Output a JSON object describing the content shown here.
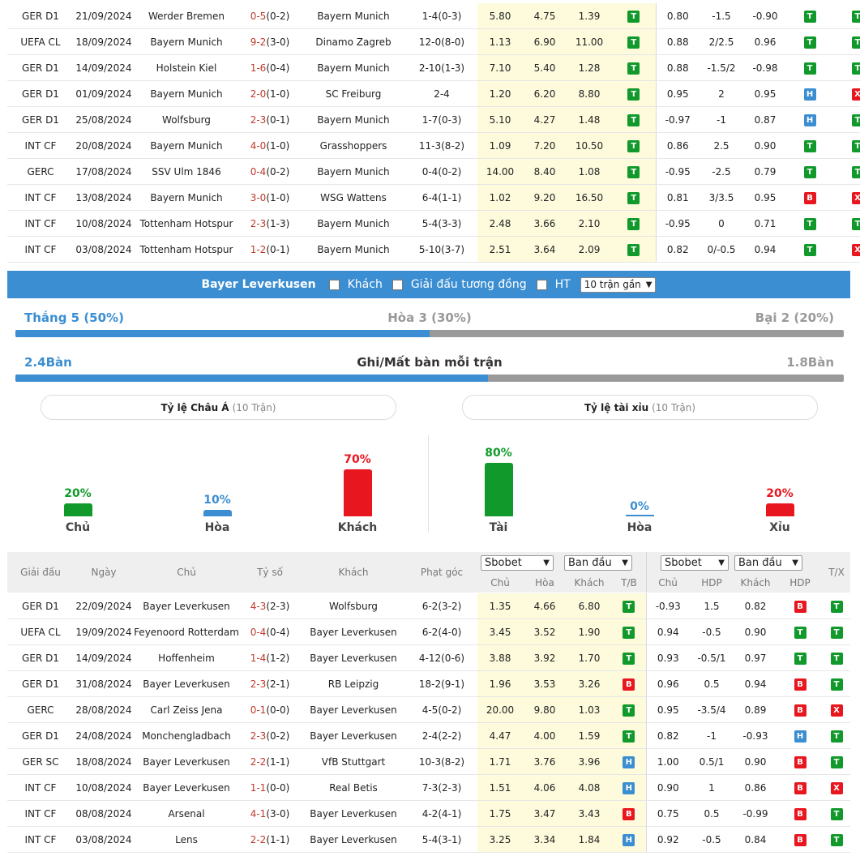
{
  "top_matches": [
    {
      "league": "GER D1",
      "date": "21/09/2024",
      "home": "Werder Bremen",
      "home_hl": false,
      "score": "0-5",
      "ht": "(0-2)",
      "away": "Bayern Munich",
      "away_hl": true,
      "corner": "1-4(0-3)",
      "o1": "5.80",
      "o2": "4.75",
      "o3": "1.39",
      "r1": "T",
      "h1": "0.80",
      "hdp": "-1.5",
      "h2": "-0.90",
      "r2": "T",
      "r3": "T"
    },
    {
      "league": "UEFA CL",
      "date": "18/09/2024",
      "home": "Bayern Munich",
      "home_hl": true,
      "score": "9-2",
      "ht": "(3-0)",
      "away": "Dinamo Zagreb",
      "away_hl": false,
      "corner": "12-0(8-0)",
      "o1": "1.13",
      "o2": "6.90",
      "o3": "11.00",
      "r1": "T",
      "h1": "0.88",
      "hdp": "2/2.5",
      "h2": "0.96",
      "r2": "T",
      "r3": "T"
    },
    {
      "league": "GER D1",
      "date": "14/09/2024",
      "home": "Holstein Kiel",
      "home_hl": false,
      "score": "1-6",
      "ht": "(0-4)",
      "away": "Bayern Munich",
      "away_hl": true,
      "corner": "2-10(1-3)",
      "o1": "7.10",
      "o2": "5.40",
      "o3": "1.28",
      "r1": "T",
      "h1": "0.88",
      "hdp": "-1.5/2",
      "h2": "-0.98",
      "r2": "T",
      "r3": "T"
    },
    {
      "league": "GER D1",
      "date": "01/09/2024",
      "home": "Bayern Munich",
      "home_hl": true,
      "score": "2-0",
      "ht": "(1-0)",
      "away": "SC Freiburg",
      "away_hl": false,
      "corner": "2-4",
      "o1": "1.20",
      "o2": "6.20",
      "o3": "8.80",
      "r1": "T",
      "h1": "0.95",
      "hdp": "2",
      "h2": "0.95",
      "r2": "H",
      "r3": "X"
    },
    {
      "league": "GER D1",
      "date": "25/08/2024",
      "home": "Wolfsburg",
      "home_hl": false,
      "score": "2-3",
      "ht": "(0-1)",
      "away": "Bayern Munich",
      "away_hl": true,
      "corner": "1-7(0-3)",
      "o1": "5.10",
      "o2": "4.27",
      "o3": "1.48",
      "r1": "T",
      "h1": "-0.97",
      "hdp": "-1",
      "h2": "0.87",
      "r2": "H",
      "r3": "T"
    },
    {
      "league": "INT CF",
      "date": "20/08/2024",
      "home": "Bayern Munich",
      "home_hl": true,
      "score": "4-0",
      "ht": "(1-0)",
      "away": "Grasshoppers",
      "away_hl": false,
      "corner": "11-3(8-2)",
      "o1": "1.09",
      "o2": "7.20",
      "o3": "10.50",
      "r1": "T",
      "h1": "0.86",
      "hdp": "2.5",
      "h2": "0.90",
      "r2": "T",
      "r3": "T"
    },
    {
      "league": "GERC",
      "date": "17/08/2024",
      "home": "SSV Ulm 1846",
      "home_hl": false,
      "score": "0-4",
      "ht": "(0-2)",
      "away": "Bayern Munich",
      "away_hl": true,
      "corner": "0-4(0-2)",
      "o1": "14.00",
      "o2": "8.40",
      "o3": "1.08",
      "r1": "T",
      "h1": "-0.95",
      "hdp": "-2.5",
      "h2": "0.79",
      "r2": "T",
      "r3": "T"
    },
    {
      "league": "INT CF",
      "date": "13/08/2024",
      "home": "Bayern Munich",
      "home_hl": true,
      "score": "3-0",
      "ht": "(1-0)",
      "away": "WSG Wattens",
      "away_hl": false,
      "corner": "6-4(1-1)",
      "o1": "1.02",
      "o2": "9.20",
      "o3": "16.50",
      "r1": "T",
      "h1": "0.81",
      "hdp": "3/3.5",
      "h2": "0.95",
      "r2": "B",
      "r3": "X"
    },
    {
      "league": "INT CF",
      "date": "10/08/2024",
      "home": "Tottenham Hotspur",
      "home_hl": false,
      "score": "2-3",
      "ht": "(1-3)",
      "away": "Bayern Munich",
      "away_hl": true,
      "corner": "5-4(3-3)",
      "o1": "2.48",
      "o2": "3.66",
      "o3": "2.10",
      "r1": "T",
      "h1": "-0.95",
      "hdp": "0",
      "h2": "0.71",
      "r2": "T",
      "r3": "T"
    },
    {
      "league": "INT CF",
      "date": "03/08/2024",
      "home": "Tottenham Hotspur",
      "home_hl": false,
      "score": "1-2",
      "ht": "(0-1)",
      "away": "Bayern Munich",
      "away_hl": true,
      "corner": "5-10(3-7)",
      "o1": "2.51",
      "o2": "3.64",
      "o3": "2.09",
      "r1": "T",
      "h1": "0.82",
      "hdp": "0/-0.5",
      "h2": "0.94",
      "r2": "T",
      "r3": "X"
    }
  ],
  "filter_bar": {
    "team": "Bayer Leverkusen",
    "opt_away": "Khách",
    "opt_same_league": "Giải đấu tương đồng",
    "opt_ht": "HT",
    "range_value": "10 trận gần"
  },
  "summary": {
    "win_label": "Thắng 5 (50%)",
    "draw_label": "Hòa 3 (30%)",
    "loss_label": "Bại 2 (20%)",
    "win_frac": 0.5,
    "gf_label": "2.4Bàn",
    "goals_title": "Ghi/Mất bàn mỗi trận",
    "ga_label": "1.8Bàn",
    "gf_frac": 0.57
  },
  "odds_panels": {
    "asian_title": "Tỷ lệ Châu Á",
    "asian_count": "(10 Trận)",
    "ou_title": "Tỷ lệ tài xỉu",
    "ou_count": "(10 Trận)"
  },
  "chart_data": [
    {
      "type": "bar",
      "title": "Tỷ lệ Châu Á (10 Trận)",
      "categories": [
        "Chủ",
        "Hòa",
        "Khách"
      ],
      "values": [
        20,
        10,
        70
      ],
      "value_labels": [
        "20%",
        "10%",
        "70%"
      ],
      "colors": [
        "#119a2b",
        "#3b8ed1",
        "#e8161e"
      ],
      "ylim": [
        0,
        100
      ]
    },
    {
      "type": "bar",
      "title": "Tỷ lệ tài xỉu (10 Trận)",
      "categories": [
        "Tài",
        "Hòa",
        "Xỉu"
      ],
      "values": [
        80,
        0,
        20
      ],
      "value_labels": [
        "80%",
        "0%",
        "20%"
      ],
      "colors": [
        "#119a2b",
        "#3b8ed1",
        "#e8161e"
      ],
      "ylim": [
        0,
        100
      ]
    }
  ],
  "bottom_header": {
    "league": "Giải đấu",
    "date": "Ngày",
    "home": "Chủ",
    "score": "Tỷ số",
    "away": "Khách",
    "corner": "Phạt góc",
    "book1": "Sbobet",
    "type1": "Ban đầu",
    "book2": "Sbobet",
    "type2": "Ban đầu",
    "c_home": "Chủ",
    "c_draw": "Hòa",
    "c_away": "Khách",
    "c_tb": "T/B",
    "c_home2": "Chủ",
    "c_hdp": "HDP",
    "c_away2": "Khách",
    "c_hdp2": "HDP",
    "tx": "T/X"
  },
  "bottom_matches": [
    {
      "league": "GER D1",
      "date": "22/09/2024",
      "home": "Bayer Leverkusen",
      "home_hl": true,
      "score": "4-3",
      "ht": "(2-3)",
      "away": "Wolfsburg",
      "away_hl": false,
      "corner": "6-2(3-2)",
      "o1": "1.35",
      "o2": "4.66",
      "o3": "6.80",
      "r1": "T",
      "h1": "-0.93",
      "hdp": "1.5",
      "h2": "0.82",
      "r2": "B",
      "r3": "T"
    },
    {
      "league": "UEFA CL",
      "date": "19/09/2024",
      "home": "Feyenoord Rotterdam",
      "home_hl": false,
      "score": "0-4",
      "ht": "(0-4)",
      "away": "Bayer Leverkusen",
      "away_hl": true,
      "corner": "6-2(4-0)",
      "o1": "3.45",
      "o2": "3.52",
      "o3": "1.90",
      "r1": "T",
      "h1": "0.94",
      "hdp": "-0.5",
      "h2": "0.90",
      "r2": "T",
      "r3": "T"
    },
    {
      "league": "GER D1",
      "date": "14/09/2024",
      "home": "Hoffenheim",
      "home_hl": false,
      "score": "1-4",
      "ht": "(1-2)",
      "away": "Bayer Leverkusen",
      "away_hl": true,
      "corner": "4-12(0-6)",
      "o1": "3.88",
      "o2": "3.92",
      "o3": "1.70",
      "r1": "T",
      "h1": "0.93",
      "hdp": "-0.5/1",
      "h2": "0.97",
      "r2": "T",
      "r3": "T"
    },
    {
      "league": "GER D1",
      "date": "31/08/2024",
      "home": "Bayer Leverkusen",
      "home_hl": true,
      "score": "2-3",
      "ht": "(2-1)",
      "away": "RB Leipzig",
      "away_hl": false,
      "corner": "18-2(9-1)",
      "o1": "1.96",
      "o2": "3.53",
      "o3": "3.26",
      "r1": "B",
      "h1": "0.96",
      "hdp": "0.5",
      "h2": "0.94",
      "r2": "B",
      "r3": "T"
    },
    {
      "league": "GERC",
      "date": "28/08/2024",
      "home": "Carl Zeiss Jena",
      "home_hl": false,
      "score": "0-1",
      "ht": "(0-0)",
      "away": "Bayer Leverkusen",
      "away_hl": true,
      "corner": "4-5(0-2)",
      "o1": "20.00",
      "o2": "9.80",
      "o3": "1.03",
      "r1": "T",
      "h1": "0.95",
      "hdp": "-3.5/4",
      "h2": "0.89",
      "r2": "B",
      "r3": "X"
    },
    {
      "league": "GER D1",
      "date": "24/08/2024",
      "home": "Monchengladbach",
      "home_hl": false,
      "score": "2-3",
      "ht": "(0-2)",
      "away": "Bayer Leverkusen",
      "away_hl": true,
      "corner": "2-4(2-2)",
      "o1": "4.47",
      "o2": "4.00",
      "o3": "1.59",
      "r1": "T",
      "h1": "0.82",
      "hdp": "-1",
      "h2": "-0.93",
      "r2": "H",
      "r3": "T"
    },
    {
      "league": "GER SC",
      "date": "18/08/2024",
      "home": "Bayer Leverkusen",
      "home_hl": true,
      "score": "2-2",
      "ht": "(1-1)",
      "away": "VfB Stuttgart",
      "away_hl": false,
      "corner": "10-3(8-2)",
      "o1": "1.71",
      "o2": "3.76",
      "o3": "3.96",
      "r1": "H",
      "h1": "1.00",
      "hdp": "0.5/1",
      "h2": "0.90",
      "r2": "B",
      "r3": "T"
    },
    {
      "league": "INT CF",
      "date": "10/08/2024",
      "home": "Bayer Leverkusen",
      "home_hl": true,
      "score": "1-1",
      "ht": "(0-0)",
      "away": "Real Betis",
      "away_hl": false,
      "corner": "7-3(2-3)",
      "o1": "1.51",
      "o2": "4.06",
      "o3": "4.08",
      "r1": "H",
      "h1": "0.90",
      "hdp": "1",
      "h2": "0.86",
      "r2": "B",
      "r3": "X"
    },
    {
      "league": "INT CF",
      "date": "08/08/2024",
      "home": "Arsenal",
      "home_hl": false,
      "score": "4-1",
      "ht": "(3-0)",
      "away": "Bayer Leverkusen",
      "away_hl": true,
      "corner": "4-2(4-1)",
      "o1": "1.75",
      "o2": "3.47",
      "o3": "3.43",
      "r1": "B",
      "h1": "0.75",
      "hdp": "0.5",
      "h2": "-0.99",
      "r2": "B",
      "r3": "T"
    },
    {
      "league": "INT CF",
      "date": "03/08/2024",
      "home": "Lens",
      "home_hl": false,
      "score": "2-2",
      "ht": "(1-1)",
      "away": "Bayer Leverkusen",
      "away_hl": true,
      "corner": "5-4(3-1)",
      "o1": "3.25",
      "o2": "3.34",
      "o3": "1.84",
      "r1": "H",
      "h1": "0.92",
      "hdp": "-0.5",
      "h2": "0.84",
      "r2": "B",
      "r3": "T"
    }
  ]
}
